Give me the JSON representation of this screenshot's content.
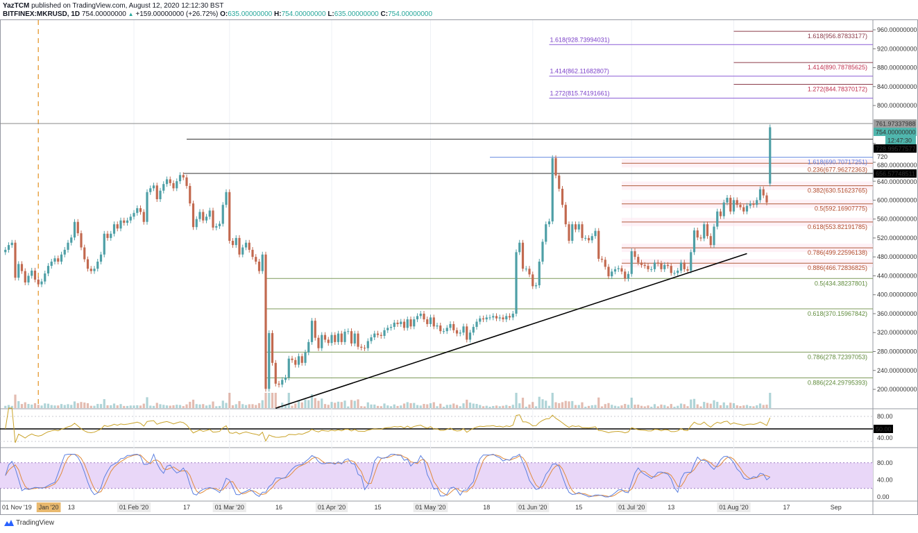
{
  "header": {
    "author": "YazTCM",
    "published": "published on TradingView.com, August 12, 2020 12:12:30 BST",
    "symbol": "BITFINEX:MKRUSD, 1D",
    "last": "754.00000000",
    "change": "+159.00000000 (+26.72%)",
    "o_label": "O:",
    "o": "635.00000000",
    "h_label": "H:",
    "h": "754.00000000",
    "l_label": "L:",
    "l": "635.00000000",
    "c_label": "C:",
    "c": "754.00000000"
  },
  "footer": {
    "brand": "TradingView"
  },
  "colors": {
    "up": "#4e9fa6",
    "down": "#c2694f",
    "rsi": "#c9a227",
    "stoch_k": "#5b7fe0",
    "stoch_d": "#e08a3c",
    "stoch_band": "#e9d7f8",
    "fib_ext_purple": "#8a5cd6",
    "fib_ext_red": "#8b3a48",
    "fib_ret": "#b05a3a",
    "fib_green": "#7d9a5a",
    "fib_blue": "#6e8fe0"
  },
  "chart_data": {
    "type": "candlestick",
    "symbol": "MKRUSD",
    "interval": "1D",
    "start_date": "2019-12-24",
    "closes": [
      495,
      505,
      510,
      436,
      465,
      450,
      426,
      440,
      451,
      432,
      422,
      428,
      445,
      461,
      470,
      477,
      470,
      485,
      495,
      510,
      521,
      554,
      530,
      500,
      475,
      455,
      450,
      455,
      470,
      485,
      529,
      520,
      529,
      549,
      540,
      557,
      552,
      557,
      565,
      573,
      583,
      575,
      554,
      617,
      625,
      631,
      602,
      620,
      634,
      644,
      636,
      625,
      640,
      653,
      648,
      630,
      593,
      543,
      560,
      575,
      557,
      565,
      578,
      542,
      545,
      550,
      590,
      617,
      514,
      505,
      520,
      485,
      500,
      510,
      495,
      480,
      470,
      450,
      485,
      201,
      319,
      256,
      212,
      210,
      220,
      225,
      265,
      262,
      252,
      270,
      256,
      278,
      300,
      345,
      309,
      287,
      315,
      305,
      298,
      315,
      300,
      318,
      300,
      322,
      323,
      297,
      318,
      290,
      288,
      287,
      302,
      310,
      318,
      315,
      313,
      325,
      330,
      332,
      341,
      338,
      343,
      330,
      348,
      333,
      348,
      355,
      360,
      348,
      338,
      352,
      333,
      335,
      323,
      323,
      330,
      338,
      325,
      318,
      320,
      333,
      305,
      320,
      332,
      343,
      350,
      348,
      352,
      352,
      355,
      350,
      352,
      348,
      355,
      352,
      360,
      490,
      510,
      455,
      455,
      443,
      418,
      420,
      470,
      512,
      549,
      555,
      689,
      652,
      624,
      590,
      549,
      514,
      549,
      538,
      549,
      520,
      520,
      515,
      524,
      535,
      476,
      474,
      459,
      439,
      449,
      454,
      456,
      449,
      434,
      444,
      492,
      480,
      468,
      463,
      461,
      454,
      454,
      468,
      466,
      454,
      463,
      461,
      446,
      446,
      451,
      468,
      454,
      451,
      490,
      536,
      521,
      519,
      549,
      524,
      505,
      544,
      576,
      566,
      595,
      605,
      576,
      600,
      590,
      585,
      576,
      588,
      593,
      590,
      600,
      623,
      610,
      595,
      754
    ],
    "first_open": 490,
    "last_candle": {
      "open": 635,
      "high": 754,
      "low": 635,
      "close": 754
    },
    "ylim": [
      160,
      975
    ],
    "y_ticks": [
      "960.00000000",
      "920.00000000",
      "880.00000000",
      "840.00000000",
      "800.00000000",
      "720",
      "680.00000000",
      "640.00000000",
      "600.00000000",
      "560.00000000",
      "520.00000000",
      "480.00000000",
      "440.00000000",
      "400.00000000",
      "360.00000000",
      "320.00000000",
      "280.00000000",
      "240.00000000",
      "200.00000000"
    ],
    "x_ticks": [
      {
        "label": "01 Nov '19",
        "date": "2019-12-26"
      },
      {
        "label": "Jan '20",
        "date": "2020-01-03",
        "highlight": true
      },
      {
        "label": "13",
        "date": "2020-01-13"
      },
      {
        "label": "01 Feb '20",
        "date": "2020-02-01",
        "box": true
      },
      {
        "label": "17",
        "date": "2020-02-17"
      },
      {
        "label": "01 Mar '20",
        "date": "2020-03-01",
        "box": true
      },
      {
        "label": "16",
        "date": "2020-03-16"
      },
      {
        "label": "01 Apr '20",
        "date": "2020-04-01",
        "box": true
      },
      {
        "label": "15",
        "date": "2020-04-15"
      },
      {
        "label": "01 May '20",
        "date": "2020-05-01",
        "box": true
      },
      {
        "label": "18",
        "date": "2020-05-18"
      },
      {
        "label": "01 Jun '20",
        "date": "2020-06-01",
        "box": true
      },
      {
        "label": "15",
        "date": "2020-06-15"
      },
      {
        "label": "01 Jul '20",
        "date": "2020-07-01",
        "box": true
      },
      {
        "label": "13",
        "date": "2020-07-13"
      },
      {
        "label": "01 Aug '20",
        "date": "2020-08-01",
        "box": true
      },
      {
        "label": "17",
        "date": "2020-08-17"
      },
      {
        "label": "Sep",
        "date": "2020-09-01"
      }
    ],
    "price_labels": [
      {
        "text": "761.97337988",
        "price": 761.97337988,
        "bg": "#9e9e9e",
        "fg": "#000000"
      },
      {
        "text": "754.00000000",
        "price": 754,
        "bg": "#4fb6ad",
        "fg": "#ffffff"
      },
      {
        "text": "12:47:30",
        "price": 741,
        "bg": "#4fb6ad",
        "fg": "#ffffff",
        "small": true
      },
      {
        "text": "728.99577577",
        "price": 728.99577577,
        "bg": "#000000",
        "fg": "#ffffff"
      },
      {
        "text": "656.57748511",
        "price": 656.57748511,
        "bg": "#000000",
        "fg": "#ffffff"
      }
    ],
    "horizontal_lines": [
      {
        "price": 761.97337988,
        "from": "2019-12-18",
        "color": "#8a8a8a"
      },
      {
        "price": 728.99577577,
        "from": "2020-02-17",
        "color": "#333333"
      },
      {
        "price": 656.57748511,
        "from": "2020-02-16",
        "color": "#333333"
      }
    ],
    "fib_levels": [
      {
        "label": "1.618(956.87833177)",
        "price": 956.87833177,
        "from": "2020-08-01",
        "color": "#8b3a48",
        "text_color": "#8b3a48",
        "align": "right"
      },
      {
        "label": "1.618(928.73994031)",
        "price": 928.73994031,
        "from": "2020-06-06",
        "color": "#8a5cd6",
        "text_color": "#7a3fc8",
        "align": "left"
      },
      {
        "label": "1.414(890.78785625)",
        "price": 890.78785625,
        "from": "2020-08-01",
        "color": "#8b3a48",
        "text_color": "#c0304e",
        "align": "right"
      },
      {
        "label": "1.414(862.11682807)",
        "price": 862.11682807,
        "from": "2020-06-06",
        "color": "#8a5cd6",
        "text_color": "#7a3fc8",
        "align": "left"
      },
      {
        "label": "1.272(844.78370172)",
        "price": 844.78370172,
        "from": "2020-08-01",
        "color": "#8b3a48",
        "text_color": "#c0304e",
        "align": "right"
      },
      {
        "label": "1.272(815.74191661)",
        "price": 815.74191661,
        "from": "2020-06-06",
        "color": "#8a5cd6",
        "text_color": "#7a3fc8",
        "align": "left"
      },
      {
        "label": "1.618(690.70717251)",
        "price": 690.70717251,
        "from": "2020-05-19",
        "color": "#6e8fe0",
        "text_color": "#5b7fe0",
        "align": "right"
      },
      {
        "label": "0.236(677.96272363)",
        "price": 677.96272363,
        "from": "2020-06-28",
        "color": "#b05a3a",
        "text_color": "#b04a2a",
        "align": "right",
        "band": true
      },
      {
        "label": "0.382(630.51623765)",
        "price": 630.51623765,
        "from": "2020-06-28",
        "color": "#b05a3a",
        "text_color": "#b04a2a",
        "align": "right",
        "band": true
      },
      {
        "label": "0.5(592.16907775)",
        "price": 592.16907775,
        "from": "2020-06-28",
        "color": "#b05a3a",
        "text_color": "#b04a2a",
        "align": "right",
        "band": true
      },
      {
        "label": "0.618(553.82191785)",
        "price": 553.82191785,
        "from": "2020-06-28",
        "color": "#b05a3a",
        "text_color": "#b04a2a",
        "align": "right",
        "band": true
      },
      {
        "label": "0.786(499.22596138)",
        "price": 499.22596138,
        "from": "2020-06-28",
        "color": "#b05a3a",
        "text_color": "#b04a2a",
        "align": "right",
        "band": true
      },
      {
        "label": "0.886(466.72836825)",
        "price": 466.72836825,
        "from": "2020-06-28",
        "color": "#b05a3a",
        "text_color": "#b04a2a",
        "align": "right",
        "band": true
      },
      {
        "label": "0.5(434.38237801)",
        "price": 434.38237801,
        "from": "2020-03-12",
        "color": "#7d9a5a",
        "text_color": "#5e8a3a",
        "align": "right"
      },
      {
        "label": "0.618(370.15967842)",
        "price": 370.15967842,
        "from": "2020-03-12",
        "color": "#7d9a5a",
        "text_color": "#5e8a3a",
        "align": "right"
      },
      {
        "label": "0.786(278.72397053)",
        "price": 278.72397053,
        "from": "2020-03-12",
        "color": "#7d9a5a",
        "text_color": "#5e8a3a",
        "align": "right"
      },
      {
        "label": "0.886(224.29795393)",
        "price": 224.29795393,
        "from": "2020-03-12",
        "color": "#7d9a5a",
        "text_color": "#5e8a3a",
        "align": "right"
      }
    ],
    "trendline": {
      "start": [
        "2020-03-15",
        160
      ],
      "end": [
        "2020-08-05",
        487
      ],
      "color": "#000000"
    },
    "vertical_marker": {
      "date": "2020-01-03",
      "color": "#e8a64a",
      "style": "dashed"
    },
    "rsi": {
      "period": 14,
      "levels": [
        80,
        20
      ],
      "midline": 50,
      "ticks": [
        "80.00",
        "50.00",
        "40.00"
      ]
    },
    "stoch_rsi": {
      "k": 3,
      "d": 3,
      "period": 14,
      "band": [
        20,
        80
      ],
      "ticks": [
        "80.00",
        "40.00",
        "0.00"
      ]
    }
  }
}
